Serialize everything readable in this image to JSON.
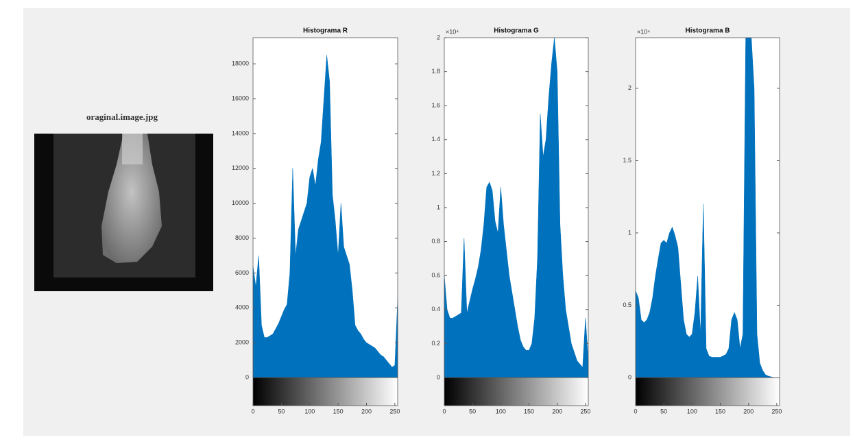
{
  "image": {
    "title": "oraginal.image.jpg"
  },
  "chart_data": [
    {
      "type": "area",
      "title": "Histograma R",
      "color": "#0072bd",
      "x": [
        0,
        5,
        10,
        15,
        20,
        25,
        30,
        35,
        40,
        45,
        50,
        55,
        60,
        65,
        70,
        75,
        80,
        85,
        90,
        95,
        100,
        105,
        110,
        115,
        120,
        125,
        130,
        135,
        140,
        145,
        150,
        155,
        160,
        165,
        170,
        175,
        180,
        185,
        190,
        195,
        200,
        205,
        210,
        215,
        220,
        225,
        230,
        235,
        240,
        245,
        250,
        255
      ],
      "values": [
        6400,
        5200,
        7000,
        3000,
        2300,
        2300,
        2400,
        2500,
        2800,
        3100,
        3500,
        3900,
        4200,
        6000,
        12000,
        7000,
        8500,
        9000,
        9500,
        10000,
        11500,
        12000,
        11000,
        12500,
        13500,
        16000,
        18500,
        17000,
        10500,
        9000,
        7000,
        10000,
        7500,
        7000,
        6500,
        5000,
        3000,
        2700,
        2500,
        2200,
        2000,
        1900,
        1800,
        1700,
        1500,
        1300,
        1200,
        1000,
        800,
        600,
        700,
        4500
      ],
      "xlim": [
        0,
        255
      ],
      "xticks": [
        0,
        50,
        100,
        150,
        200,
        250
      ],
      "ylim": [
        0,
        19500
      ],
      "yticks": [
        0,
        2000,
        4000,
        6000,
        8000,
        10000,
        12000,
        14000,
        16000,
        18000
      ]
    },
    {
      "type": "area",
      "title": "Histograma G",
      "color": "#0072bd",
      "y_exponent_label": "×10⁴",
      "x": [
        0,
        5,
        10,
        15,
        20,
        25,
        30,
        35,
        40,
        45,
        50,
        55,
        60,
        65,
        70,
        75,
        80,
        85,
        90,
        95,
        100,
        105,
        110,
        115,
        120,
        125,
        130,
        135,
        140,
        145,
        150,
        155,
        160,
        165,
        170,
        175,
        180,
        185,
        190,
        195,
        200,
        205,
        210,
        215,
        220,
        225,
        230,
        235,
        240,
        245,
        250,
        255
      ],
      "values": [
        0.6,
        0.4,
        0.35,
        0.35,
        0.36,
        0.37,
        0.38,
        0.82,
        0.38,
        0.45,
        0.52,
        0.58,
        0.65,
        0.75,
        0.9,
        1.12,
        1.15,
        1.1,
        0.92,
        0.85,
        1.12,
        0.9,
        0.75,
        0.6,
        0.5,
        0.4,
        0.3,
        0.22,
        0.18,
        0.16,
        0.16,
        0.2,
        0.35,
        0.7,
        1.55,
        1.3,
        1.4,
        1.65,
        1.85,
        2.0,
        1.8,
        0.9,
        0.6,
        0.4,
        0.3,
        0.2,
        0.15,
        0.1,
        0.08,
        0.06,
        0.35,
        0.1
      ],
      "xlim": [
        0,
        255
      ],
      "xticks": [
        0,
        50,
        100,
        150,
        200,
        250
      ],
      "ylim": [
        0,
        2
      ],
      "yticks": [
        0,
        0.2,
        0.4,
        0.6,
        0.8,
        1,
        1.2,
        1.4,
        1.6,
        1.8,
        2
      ]
    },
    {
      "type": "area",
      "title": "Histograma B",
      "color": "#0072bd",
      "y_exponent_label": "×10⁴",
      "x": [
        0,
        5,
        10,
        15,
        20,
        25,
        30,
        35,
        40,
        45,
        50,
        55,
        60,
        65,
        70,
        75,
        80,
        85,
        90,
        95,
        100,
        105,
        110,
        115,
        120,
        125,
        130,
        135,
        140,
        145,
        150,
        155,
        160,
        165,
        170,
        175,
        180,
        185,
        190,
        195,
        200,
        205,
        210,
        215,
        220,
        225,
        230,
        235,
        240,
        245,
        250,
        255
      ],
      "values": [
        0.6,
        0.55,
        0.4,
        0.38,
        0.4,
        0.45,
        0.55,
        0.7,
        0.82,
        0.93,
        0.95,
        0.93,
        1.0,
        1.04,
        0.98,
        0.9,
        0.65,
        0.4,
        0.3,
        0.28,
        0.3,
        0.45,
        0.7,
        0.3,
        1.2,
        0.2,
        0.15,
        0.14,
        0.14,
        0.14,
        0.14,
        0.15,
        0.16,
        0.2,
        0.4,
        0.45,
        0.4,
        0.2,
        0.3,
        2.35,
        2.35,
        2.35,
        2.0,
        0.3,
        0.1,
        0.05,
        0.02,
        0.01,
        0.005,
        0,
        0,
        0
      ],
      "xlim": [
        0,
        255
      ],
      "xticks": [
        0,
        50,
        100,
        150,
        200,
        250
      ],
      "ylim": [
        0,
        2.35
      ],
      "yticks": [
        0,
        0.5,
        1,
        1.5,
        2
      ]
    }
  ]
}
